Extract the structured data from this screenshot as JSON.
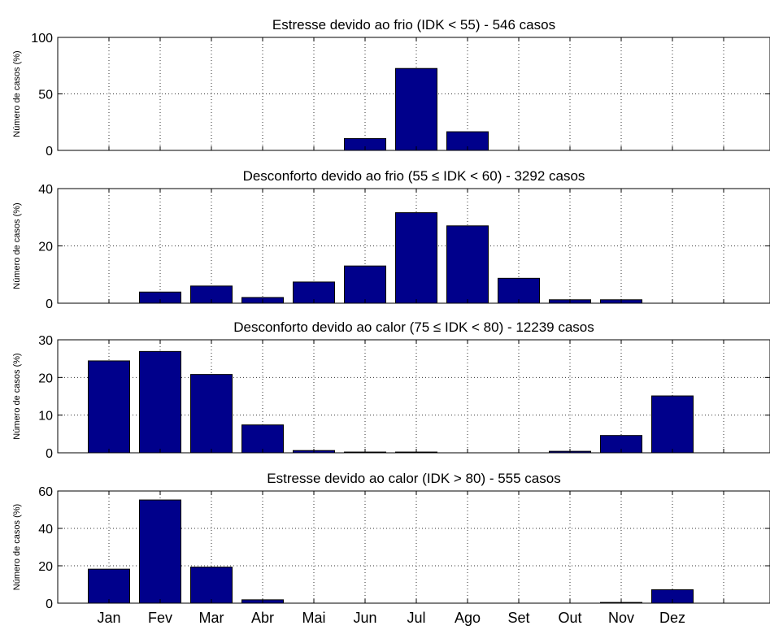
{
  "figure": {
    "bar_color": "#00008B",
    "background": "#FFFFFF",
    "grid": "dotted",
    "x_tick_labels": [
      "Jan",
      "Fev",
      "Mar",
      "Abr",
      "Mai",
      "Jun",
      "Jul",
      "Ago",
      "Set",
      "Out",
      "Nov",
      "Dez"
    ]
  },
  "chart_data": [
    {
      "type": "bar",
      "title": "Estresse devido ao frio (IDK < 55) - 546 casos",
      "ylabel": "Número de casos (%)",
      "xlabel": "",
      "categories": [
        "Jan",
        "Fev",
        "Mar",
        "Abr",
        "Mai",
        "Jun",
        "Jul",
        "Ago",
        "Set",
        "Out",
        "Nov",
        "Dez"
      ],
      "values": [
        0,
        0,
        0,
        0,
        0,
        10.5,
        72.5,
        16.5,
        0,
        0,
        0,
        0
      ],
      "ylim": [
        0,
        100
      ],
      "yticks": [
        0,
        50,
        100
      ],
      "grid": true
    },
    {
      "type": "bar",
      "title": "Desconforto devido ao frio (55 ≤ IDK < 60) - 3292 casos",
      "ylabel": "Número de casos (%)",
      "xlabel": "",
      "categories": [
        "Jan",
        "Fev",
        "Mar",
        "Abr",
        "Mai",
        "Jun",
        "Jul",
        "Ago",
        "Set",
        "Out",
        "Nov",
        "Dez"
      ],
      "values": [
        0,
        3.9,
        6,
        2,
        7.4,
        13,
        31.6,
        27,
        8.7,
        1.2,
        1.2,
        0
      ],
      "ylim": [
        0,
        40
      ],
      "yticks": [
        0,
        20,
        40
      ],
      "grid": true
    },
    {
      "type": "bar",
      "title": "Desconforto devido ao calor (75 ≤ IDK < 80) - 12239 casos",
      "ylabel": "Número de casos (%)",
      "xlabel": "",
      "categories": [
        "Jan",
        "Fev",
        "Mar",
        "Abr",
        "Mai",
        "Jun",
        "Jul",
        "Ago",
        "Set",
        "Out",
        "Nov",
        "Dez"
      ],
      "values": [
        24.4,
        26.9,
        20.8,
        7.4,
        0.6,
        0.2,
        0.2,
        0,
        0,
        0.4,
        4.6,
        15.1
      ],
      "ylim": [
        0,
        30
      ],
      "yticks": [
        0,
        10,
        20,
        30
      ],
      "grid": true
    },
    {
      "type": "bar",
      "title": "Estresse devido ao calor (IDK > 80) - 555 casos",
      "ylabel": "Número de casos (%)",
      "xlabel": "",
      "categories": [
        "Jan",
        "Fev",
        "Mar",
        "Abr",
        "Mai",
        "Jun",
        "Jul",
        "Ago",
        "Set",
        "Out",
        "Nov",
        "Dez"
      ],
      "values": [
        18.2,
        55.2,
        19.3,
        1.8,
        0,
        0,
        0,
        0,
        0,
        0,
        0.4,
        7.2
      ],
      "ylim": [
        0,
        60
      ],
      "yticks": [
        0,
        20,
        40,
        60
      ],
      "grid": true
    }
  ]
}
